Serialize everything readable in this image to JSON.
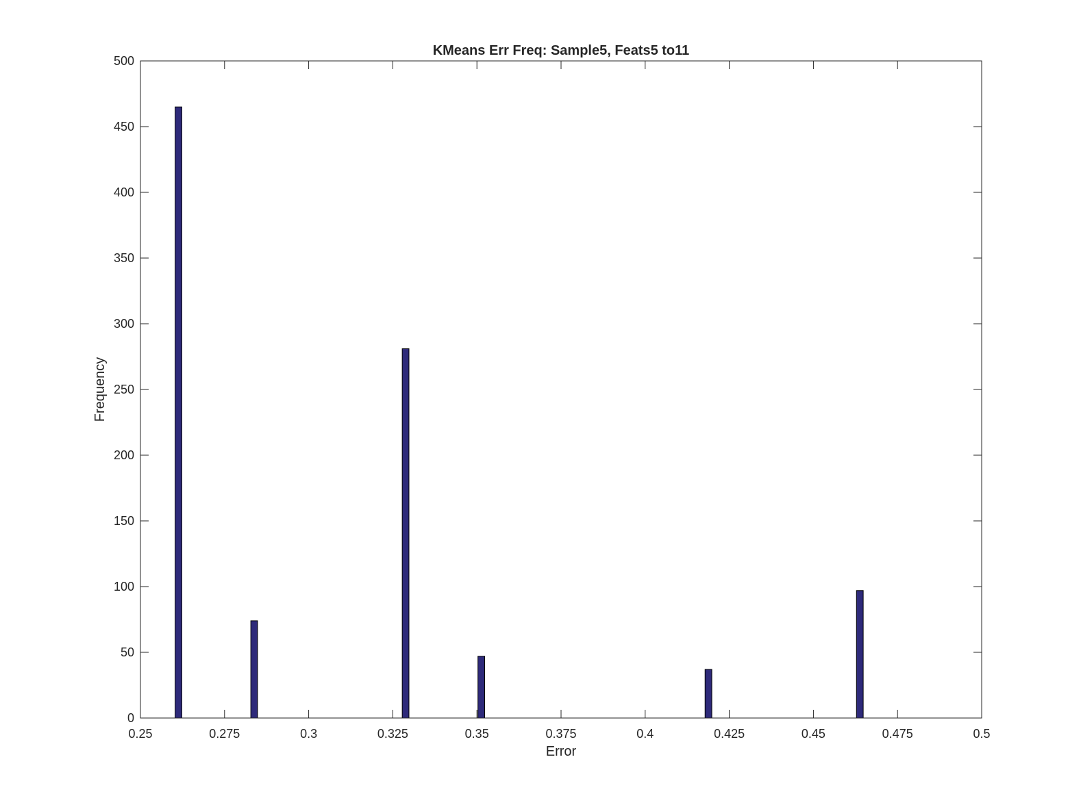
{
  "chart_data": {
    "type": "bar",
    "title": "KMeans Err Freq: Sample5, Feats5 to11",
    "xlabel": "Error",
    "ylabel": "Frequency",
    "xlim": [
      0.25,
      0.5
    ],
    "ylim": [
      0,
      500
    ],
    "xticks": [
      "0.25",
      "0.275",
      "0.3",
      "0.325",
      "0.35",
      "0.375",
      "0.4",
      "0.425",
      "0.45",
      "0.475",
      "0.5"
    ],
    "yticks": [
      "0",
      "50",
      "100",
      "150",
      "200",
      "250",
      "300",
      "350",
      "400",
      "450",
      "500"
    ],
    "bar_color": "#2e2a7a",
    "bar_width": 0.002,
    "x": [
      0.2613,
      0.2838,
      0.3288,
      0.3513,
      0.4188,
      0.4638
    ],
    "values": [
      465,
      74,
      281,
      47,
      37,
      97
    ],
    "grid": false,
    "legend": "none"
  }
}
